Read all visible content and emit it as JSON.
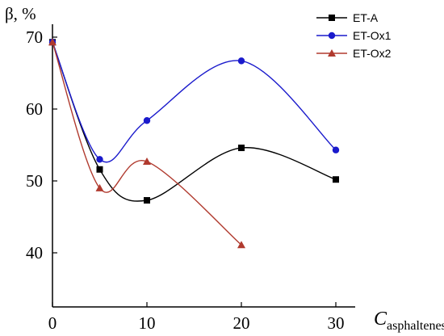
{
  "chart_data": {
    "type": "line",
    "ylabel": "β, %",
    "xlabel_main": "C",
    "xlabel_sub": "asphaltenes",
    "x": [
      0,
      5,
      10,
      20,
      30
    ],
    "xlim": [
      0,
      32
    ],
    "ylim": [
      35,
      72
    ],
    "x_ticks": [
      0,
      10,
      20,
      30
    ],
    "y_ticks": [
      40,
      50,
      60,
      70
    ],
    "series": [
      {
        "name": "ET-A",
        "color": "#000000",
        "marker": "square",
        "x": [
          0,
          5,
          10,
          20,
          30
        ],
        "y": [
          69.3,
          51.6,
          47.3,
          54.6,
          50.2
        ]
      },
      {
        "name": "ET-Ox1",
        "color": "#1a1acc",
        "marker": "circle",
        "x": [
          0,
          5,
          10,
          20,
          30
        ],
        "y": [
          69.3,
          53.0,
          58.4,
          66.7,
          54.3
        ]
      },
      {
        "name": "ET-Ox2",
        "color": "#b03a2e",
        "marker": "triangle",
        "x": [
          0,
          5,
          10,
          20
        ],
        "y": [
          69.3,
          49.0,
          52.7,
          41.1
        ]
      }
    ],
    "legend_position": "top-right",
    "grid": false
  }
}
